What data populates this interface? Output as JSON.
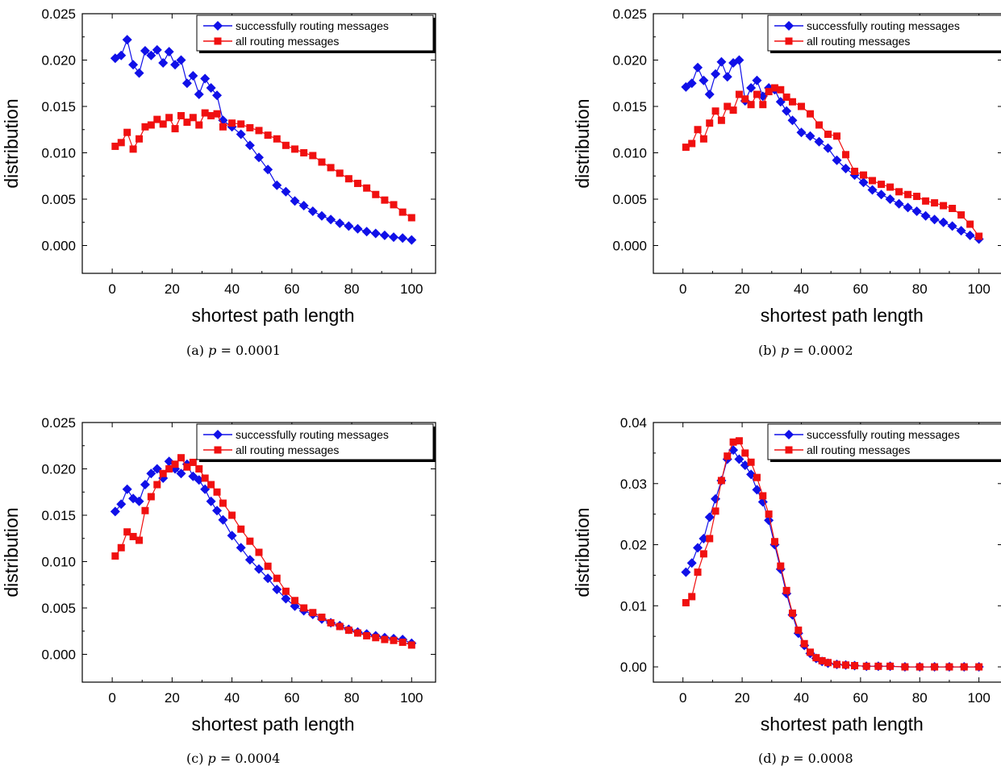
{
  "colors": {
    "success": "#1010e8",
    "all": "#f01010",
    "axis": "#000000"
  },
  "chart_data": [
    {
      "type": "line",
      "caption_label": "(a)",
      "caption_var": "p",
      "caption_value": " = 0.0001",
      "xlabel": "shortest path length",
      "ylabel": "distribution",
      "xlim": [
        -10,
        108
      ],
      "ylim": [
        -0.003,
        0.025
      ],
      "xticks": [
        0,
        20,
        40,
        60,
        80,
        100
      ],
      "xtick_labels": [
        "0",
        "20",
        "40",
        "60",
        "80",
        "100"
      ],
      "yticks": [
        0,
        0.005,
        0.01,
        0.015,
        0.02,
        0.025
      ],
      "ytick_labels": [
        "0.000",
        "0.005",
        "0.010",
        "0.015",
        "0.020",
        "0.025"
      ],
      "legend_position": "top-right",
      "series": [
        {
          "name": "successfully routing messages",
          "marker": "diamond",
          "x": [
            1,
            3,
            5,
            7,
            9,
            11,
            13,
            15,
            17,
            19,
            21,
            23,
            25,
            27,
            29,
            31,
            33,
            35,
            37,
            40,
            43,
            46,
            49,
            52,
            55,
            58,
            61,
            64,
            67,
            70,
            73,
            76,
            79,
            82,
            85,
            88,
            91,
            94,
            97,
            100
          ],
          "y": [
            0.0202,
            0.0205,
            0.0222,
            0.0195,
            0.0186,
            0.021,
            0.0205,
            0.0211,
            0.0197,
            0.0209,
            0.0195,
            0.02,
            0.0175,
            0.0183,
            0.0163,
            0.018,
            0.017,
            0.0162,
            0.0135,
            0.0128,
            0.012,
            0.0108,
            0.0095,
            0.0082,
            0.0065,
            0.0058,
            0.0048,
            0.0043,
            0.0037,
            0.0032,
            0.0028,
            0.0024,
            0.0021,
            0.0018,
            0.0015,
            0.0013,
            0.0011,
            0.0009,
            0.0008,
            0.0006
          ]
        },
        {
          "name": "all routing messages",
          "marker": "square",
          "x": [
            1,
            3,
            5,
            7,
            9,
            11,
            13,
            15,
            17,
            19,
            21,
            23,
            25,
            27,
            29,
            31,
            33,
            35,
            37,
            40,
            43,
            46,
            49,
            52,
            55,
            58,
            61,
            64,
            67,
            70,
            73,
            76,
            79,
            82,
            85,
            88,
            91,
            94,
            97,
            100
          ],
          "y": [
            0.0107,
            0.0111,
            0.0122,
            0.0104,
            0.0115,
            0.0128,
            0.013,
            0.0136,
            0.0131,
            0.0138,
            0.0126,
            0.014,
            0.0133,
            0.0138,
            0.013,
            0.0143,
            0.014,
            0.0142,
            0.0128,
            0.0132,
            0.0131,
            0.0127,
            0.0124,
            0.0119,
            0.0115,
            0.0108,
            0.0104,
            0.01,
            0.0097,
            0.009,
            0.0084,
            0.0078,
            0.0072,
            0.0067,
            0.0062,
            0.0055,
            0.0049,
            0.0044,
            0.0036,
            0.003
          ]
        }
      ]
    },
    {
      "type": "line",
      "caption_label": "(b)",
      "caption_var": "p",
      "caption_value": " = 0.0002",
      "xlabel": "shortest path length",
      "ylabel": "distribution",
      "xlim": [
        -10,
        108
      ],
      "ylim": [
        -0.003,
        0.025
      ],
      "xticks": [
        0,
        20,
        40,
        60,
        80,
        100
      ],
      "xtick_labels": [
        "0",
        "20",
        "40",
        "60",
        "80",
        "100"
      ],
      "yticks": [
        0,
        0.005,
        0.01,
        0.015,
        0.02,
        0.025
      ],
      "ytick_labels": [
        "0.000",
        "0.005",
        "0.010",
        "0.015",
        "0.020",
        "0.025"
      ],
      "legend_position": "top-right",
      "series": [
        {
          "name": "successfully routing messages",
          "marker": "diamond",
          "x": [
            1,
            3,
            5,
            7,
            9,
            11,
            13,
            15,
            17,
            19,
            21,
            23,
            25,
            27,
            29,
            31,
            33,
            35,
            37,
            40,
            43,
            46,
            49,
            52,
            55,
            58,
            61,
            64,
            67,
            70,
            73,
            76,
            79,
            82,
            85,
            88,
            91,
            94,
            97,
            100
          ],
          "y": [
            0.0171,
            0.0175,
            0.0192,
            0.0178,
            0.0163,
            0.0185,
            0.0198,
            0.0182,
            0.0197,
            0.02,
            0.0156,
            0.017,
            0.0178,
            0.0161,
            0.017,
            0.0168,
            0.0155,
            0.0145,
            0.0135,
            0.0122,
            0.0118,
            0.0112,
            0.0105,
            0.0092,
            0.0083,
            0.0076,
            0.0068,
            0.006,
            0.0055,
            0.005,
            0.0045,
            0.0041,
            0.0037,
            0.0032,
            0.0028,
            0.0025,
            0.0021,
            0.0016,
            0.0011,
            0.0007
          ]
        },
        {
          "name": "all routing messages",
          "marker": "square",
          "x": [
            1,
            3,
            5,
            7,
            9,
            11,
            13,
            15,
            17,
            19,
            21,
            23,
            25,
            27,
            29,
            31,
            33,
            35,
            37,
            40,
            43,
            46,
            49,
            52,
            55,
            58,
            61,
            64,
            67,
            70,
            73,
            76,
            79,
            82,
            85,
            88,
            91,
            94,
            97,
            100
          ],
          "y": [
            0.0106,
            0.011,
            0.0125,
            0.0115,
            0.0132,
            0.0145,
            0.0135,
            0.015,
            0.0146,
            0.0163,
            0.0158,
            0.0152,
            0.0163,
            0.0152,
            0.0166,
            0.017,
            0.0168,
            0.016,
            0.0155,
            0.015,
            0.0142,
            0.013,
            0.012,
            0.0118,
            0.0098,
            0.008,
            0.0076,
            0.007,
            0.0066,
            0.0063,
            0.0058,
            0.0055,
            0.0053,
            0.0048,
            0.0046,
            0.0043,
            0.004,
            0.0033,
            0.0023,
            0.001
          ]
        }
      ]
    },
    {
      "type": "line",
      "caption_label": "(c)",
      "caption_var": "p",
      "caption_value": " = 0.0004",
      "xlabel": "shortest path length",
      "ylabel": "distribution",
      "xlim": [
        -10,
        108
      ],
      "ylim": [
        -0.003,
        0.025
      ],
      "xticks": [
        0,
        20,
        40,
        60,
        80,
        100
      ],
      "xtick_labels": [
        "0",
        "20",
        "40",
        "60",
        "80",
        "100"
      ],
      "yticks": [
        0,
        0.005,
        0.01,
        0.015,
        0.02,
        0.025
      ],
      "ytick_labels": [
        "0.000",
        "0.005",
        "0.010",
        "0.015",
        "0.020",
        "0.025"
      ],
      "legend_position": "top-right",
      "series": [
        {
          "name": "successfully routing messages",
          "marker": "diamond",
          "x": [
            1,
            3,
            5,
            7,
            9,
            11,
            13,
            15,
            17,
            19,
            21,
            23,
            25,
            27,
            29,
            31,
            33,
            35,
            37,
            40,
            43,
            46,
            49,
            52,
            55,
            58,
            61,
            64,
            67,
            70,
            73,
            76,
            79,
            82,
            85,
            88,
            91,
            94,
            97,
            100
          ],
          "y": [
            0.0154,
            0.0162,
            0.0178,
            0.0168,
            0.0165,
            0.0183,
            0.0195,
            0.02,
            0.019,
            0.0208,
            0.02,
            0.0195,
            0.0205,
            0.0192,
            0.0188,
            0.0178,
            0.0165,
            0.0155,
            0.0145,
            0.0128,
            0.0115,
            0.0102,
            0.0092,
            0.0082,
            0.007,
            0.006,
            0.0052,
            0.0047,
            0.0043,
            0.0038,
            0.0034,
            0.0031,
            0.0027,
            0.0024,
            0.0022,
            0.002,
            0.0018,
            0.0017,
            0.0016,
            0.0012
          ]
        },
        {
          "name": "all routing messages",
          "marker": "square",
          "x": [
            1,
            3,
            5,
            7,
            9,
            11,
            13,
            15,
            17,
            19,
            21,
            23,
            25,
            27,
            29,
            31,
            33,
            35,
            37,
            40,
            43,
            46,
            49,
            52,
            55,
            58,
            61,
            64,
            67,
            70,
            73,
            76,
            79,
            82,
            85,
            88,
            91,
            94,
            97,
            100
          ],
          "y": [
            0.0106,
            0.0115,
            0.0132,
            0.0127,
            0.0123,
            0.0155,
            0.017,
            0.0183,
            0.0195,
            0.02,
            0.0205,
            0.0212,
            0.0202,
            0.0207,
            0.02,
            0.019,
            0.0183,
            0.0175,
            0.0163,
            0.015,
            0.0135,
            0.0122,
            0.011,
            0.0095,
            0.0082,
            0.0068,
            0.0058,
            0.005,
            0.0045,
            0.004,
            0.0034,
            0.003,
            0.0026,
            0.0023,
            0.002,
            0.0018,
            0.0016,
            0.0015,
            0.0013,
            0.001
          ]
        }
      ]
    },
    {
      "type": "line",
      "caption_label": "(d)",
      "caption_var": "p",
      "caption_value": " = 0.0008",
      "xlabel": "shortest path length",
      "ylabel": "distribution",
      "xlim": [
        -10,
        108
      ],
      "ylim": [
        -0.0025,
        0.04
      ],
      "xticks": [
        0,
        20,
        40,
        60,
        80,
        100
      ],
      "xtick_labels": [
        "0",
        "20",
        "40",
        "60",
        "80",
        "100"
      ],
      "yticks": [
        0,
        0.01,
        0.02,
        0.03,
        0.04
      ],
      "ytick_labels": [
        "0.00",
        "0.01",
        "0.02",
        "0.03",
        "0.04"
      ],
      "legend_position": "top-right",
      "series": [
        {
          "name": "successfully routing messages",
          "marker": "diamond",
          "x": [
            1,
            3,
            5,
            7,
            9,
            11,
            13,
            15,
            17,
            19,
            21,
            23,
            25,
            27,
            29,
            31,
            33,
            35,
            37,
            39,
            41,
            43,
            45,
            47,
            49,
            52,
            55,
            58,
            62,
            66,
            70,
            75,
            80,
            85,
            90,
            95,
            100
          ],
          "y": [
            0.0155,
            0.017,
            0.0195,
            0.021,
            0.0245,
            0.0275,
            0.0305,
            0.034,
            0.0355,
            0.034,
            0.033,
            0.0315,
            0.029,
            0.027,
            0.024,
            0.02,
            0.016,
            0.012,
            0.0085,
            0.0055,
            0.0035,
            0.0022,
            0.0014,
            0.0009,
            0.0006,
            0.0004,
            0.0003,
            0.0002,
            0.0001,
            0.0001,
            0.0001,
            0.0,
            0.0,
            0.0,
            0.0,
            0.0,
            0.0
          ]
        },
        {
          "name": "all routing messages",
          "marker": "square",
          "x": [
            1,
            3,
            5,
            7,
            9,
            11,
            13,
            15,
            17,
            19,
            21,
            23,
            25,
            27,
            29,
            31,
            33,
            35,
            37,
            39,
            41,
            43,
            45,
            47,
            49,
            52,
            55,
            58,
            62,
            66,
            70,
            75,
            80,
            85,
            90,
            95,
            100
          ],
          "y": [
            0.0105,
            0.0115,
            0.0155,
            0.0185,
            0.021,
            0.0255,
            0.0305,
            0.0345,
            0.0368,
            0.037,
            0.035,
            0.0335,
            0.031,
            0.028,
            0.025,
            0.0205,
            0.0165,
            0.0125,
            0.0088,
            0.006,
            0.0038,
            0.0024,
            0.0015,
            0.001,
            0.0007,
            0.0004,
            0.0003,
            0.0002,
            0.0001,
            0.0001,
            0.0001,
            0.0,
            0.0,
            0.0,
            0.0,
            0.0,
            0.0
          ]
        }
      ]
    }
  ]
}
